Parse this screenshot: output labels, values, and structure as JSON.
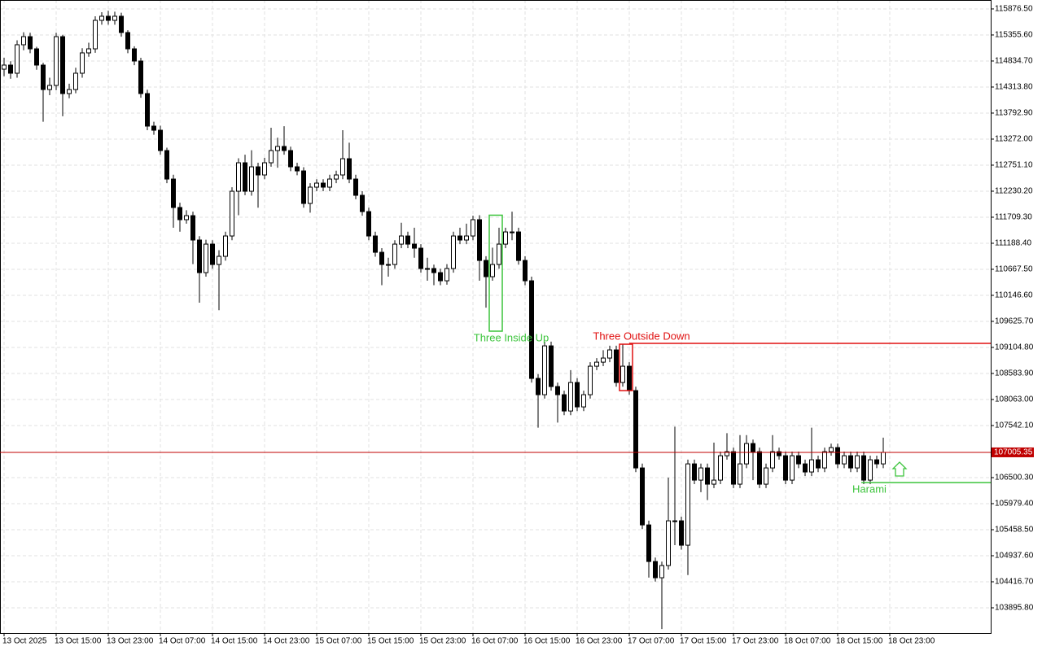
{
  "chart_data": {
    "type": "candlestick",
    "up_color": "#ffffff",
    "down_color": "#000000",
    "grid": true,
    "ylim": [
      103391,
      116055
    ],
    "yticks": [
      {
        "value": 115876.5,
        "label": "115876.50"
      },
      {
        "value": 115355.6,
        "label": "115355.60"
      },
      {
        "value": 114834.7,
        "label": "114834.70"
      },
      {
        "value": 114313.8,
        "label": "114313.80"
      },
      {
        "value": 113792.9,
        "label": "113792.90"
      },
      {
        "value": 113272.0,
        "label": "113272.00"
      },
      {
        "value": 112751.1,
        "label": "112751.10"
      },
      {
        "value": 112230.2,
        "label": "112230.20"
      },
      {
        "value": 111709.3,
        "label": "111709.30"
      },
      {
        "value": 111188.4,
        "label": "111188.40"
      },
      {
        "value": 110667.5,
        "label": "110667.50"
      },
      {
        "value": 110146.6,
        "label": "110146.60"
      },
      {
        "value": 109625.7,
        "label": "109625.70"
      },
      {
        "value": 109104.8,
        "label": "109104.80"
      },
      {
        "value": 108583.9,
        "label": "108583.90"
      },
      {
        "value": 108063.0,
        "label": "108063.00"
      },
      {
        "value": 107542.1,
        "label": "107542.10"
      },
      {
        "value": 106500.3,
        "label": "106500.30"
      },
      {
        "value": 105979.4,
        "label": "105979.40"
      },
      {
        "value": 105458.5,
        "label": "105458.50"
      },
      {
        "value": 104937.6,
        "label": "104937.60"
      },
      {
        "value": 104416.7,
        "label": "104416.70"
      },
      {
        "value": 103895.8,
        "label": "103895.80"
      }
    ],
    "xticks": [
      {
        "value": 0,
        "label": "13 Oct 2025"
      },
      {
        "value": 8,
        "label": "13 Oct 15:00"
      },
      {
        "value": 16,
        "label": "13 Oct 23:00"
      },
      {
        "value": 24,
        "label": "14 Oct 07:00"
      },
      {
        "value": 32,
        "label": "14 Oct 15:00"
      },
      {
        "value": 40,
        "label": "14 Oct 23:00"
      },
      {
        "value": 48,
        "label": "15 Oct 07:00"
      },
      {
        "value": 56,
        "label": "15 Oct 15:00"
      },
      {
        "value": 64,
        "label": "15 Oct 23:00"
      },
      {
        "value": 72,
        "label": "16 Oct 07:00"
      },
      {
        "value": 80,
        "label": "16 Oct 15:00"
      },
      {
        "value": 88,
        "label": "16 Oct 23:00"
      },
      {
        "value": 96,
        "label": "17 Oct 07:00"
      },
      {
        "value": 104,
        "label": "17 Oct 15:00"
      },
      {
        "value": 112,
        "label": "17 Oct 23:00"
      },
      {
        "value": 120,
        "label": "18 Oct 07:00"
      },
      {
        "value": 128,
        "label": "18 Oct 15:00"
      },
      {
        "value": 136,
        "label": "18 Oct 23:00"
      }
    ],
    "last_price": 107005.35,
    "last_price_color": "#c00000",
    "patterns": [
      {
        "label": "Three Inside Up",
        "color": "#3cc43c",
        "from": 75,
        "to": 76,
        "high": 111750,
        "low": 109430
      },
      {
        "label": "Three Outside Down",
        "color": "#e01010",
        "from": 95,
        "to": 96,
        "high": 109169,
        "low": 108241,
        "level": 109185
      },
      {
        "label": "Harami",
        "color": "#3cc43c",
        "from": 132,
        "level": 106401
      }
    ],
    "candles": [
      [
        114671,
        114900,
        114530,
        114753
      ],
      [
        114753,
        114830,
        114480,
        114590
      ],
      [
        114590,
        115250,
        114500,
        115160
      ],
      [
        115160,
        115410,
        115050,
        115322
      ],
      [
        115322,
        115400,
        114990,
        115078
      ],
      [
        115078,
        115120,
        114660,
        114753
      ],
      [
        114753,
        114800,
        113620,
        114264
      ],
      [
        114264,
        114500,
        114150,
        114346
      ],
      [
        114346,
        115400,
        114250,
        115322
      ],
      [
        115322,
        115360,
        113730,
        114183
      ],
      [
        114183,
        114380,
        114090,
        114264
      ],
      [
        114264,
        114700,
        114190,
        114590
      ],
      [
        114590,
        115090,
        114500,
        114997
      ],
      [
        114997,
        115200,
        114920,
        115078
      ],
      [
        115078,
        115730,
        115000,
        115648
      ],
      [
        115648,
        115810,
        115560,
        115730
      ],
      [
        115730,
        115840,
        115560,
        115648
      ],
      [
        115648,
        115820,
        115560,
        115730
      ],
      [
        115730,
        115800,
        115320,
        115404
      ],
      [
        115404,
        115450,
        114990,
        115078
      ],
      [
        115078,
        115130,
        114750,
        114834
      ],
      [
        114834,
        114900,
        114100,
        114183
      ],
      [
        114183,
        114260,
        113450,
        113532
      ],
      [
        113532,
        113620,
        113360,
        113450
      ],
      [
        113450,
        113540,
        112960,
        113043
      ],
      [
        113043,
        113100,
        112390,
        112473
      ],
      [
        112473,
        112560,
        111500,
        111904
      ],
      [
        111904,
        112000,
        111420,
        111660
      ],
      [
        111660,
        111850,
        111580,
        111741
      ],
      [
        111741,
        111820,
        110770,
        111253
      ],
      [
        111253,
        111330,
        110000,
        110601
      ],
      [
        110601,
        111260,
        110520,
        111171
      ],
      [
        111171,
        111250,
        110680,
        110764
      ],
      [
        110764,
        111050,
        109850,
        110927
      ],
      [
        110927,
        111420,
        110840,
        111334
      ],
      [
        111334,
        112310,
        111250,
        112229
      ],
      [
        112229,
        112890,
        111750,
        112799
      ],
      [
        112799,
        112960,
        112150,
        112229
      ],
      [
        112229,
        113050,
        112140,
        112718
      ],
      [
        112718,
        112800,
        111900,
        112555
      ],
      [
        112555,
        112900,
        112470,
        112799
      ],
      [
        112799,
        113500,
        112720,
        113043
      ],
      [
        113043,
        113300,
        112700,
        113125
      ],
      [
        113125,
        113530,
        112960,
        113043
      ],
      [
        113043,
        113120,
        112630,
        112718
      ],
      [
        112718,
        112800,
        112550,
        112636
      ],
      [
        112636,
        112710,
        111900,
        111985
      ],
      [
        111985,
        112390,
        111800,
        112311
      ],
      [
        112311,
        112470,
        112230,
        112392
      ],
      [
        112392,
        112470,
        112230,
        112311
      ],
      [
        112311,
        112560,
        112230,
        112473
      ],
      [
        112473,
        112640,
        112390,
        112555
      ],
      [
        112555,
        113450,
        112470,
        112880
      ],
      [
        112880,
        113200,
        112390,
        112473
      ],
      [
        112473,
        112560,
        112070,
        112148
      ],
      [
        112148,
        112230,
        111740,
        111822
      ],
      [
        111822,
        111900,
        111250,
        111334
      ],
      [
        111334,
        111420,
        110920,
        111008
      ],
      [
        111008,
        111090,
        110350,
        110764
      ],
      [
        110764,
        110900,
        110520,
        110764
      ],
      [
        110764,
        111250,
        110680,
        111171
      ],
      [
        111171,
        111600,
        111090,
        111334
      ],
      [
        111334,
        111420,
        111090,
        111171
      ],
      [
        111171,
        111500,
        110900,
        111090
      ],
      [
        111090,
        111170,
        110600,
        110683
      ],
      [
        110683,
        110900,
        110440,
        110683
      ],
      [
        110683,
        110760,
        110350,
        110601
      ],
      [
        110601,
        110680,
        110350,
        110438
      ],
      [
        110438,
        110770,
        110360,
        110683
      ],
      [
        110683,
        111420,
        110600,
        111334
      ],
      [
        111334,
        111500,
        111170,
        111253
      ],
      [
        111253,
        111580,
        111170,
        111334
      ],
      [
        111334,
        111740,
        111250,
        111660
      ],
      [
        111660,
        111750,
        110440,
        110845
      ],
      [
        110845,
        110930,
        109900,
        110520
      ],
      [
        110520,
        111100,
        110440,
        110764
      ],
      [
        110764,
        111500,
        110680,
        111171
      ],
      [
        111171,
        111500,
        111090,
        111415
      ],
      [
        111415,
        111820,
        111250,
        111415
      ],
      [
        111415,
        111500,
        110760,
        110845
      ],
      [
        110845,
        110930,
        110350,
        110438
      ],
      [
        110438,
        110520,
        108400,
        108485
      ],
      [
        108485,
        108570,
        107500,
        108159
      ],
      [
        108159,
        109220,
        108080,
        109136
      ],
      [
        109136,
        109220,
        108240,
        108322
      ],
      [
        108322,
        108400,
        107600,
        108159
      ],
      [
        108159,
        108240,
        107750,
        107833
      ],
      [
        107833,
        108650,
        107750,
        108403
      ],
      [
        108403,
        108490,
        107830,
        107915
      ],
      [
        107915,
        108240,
        107830,
        108159
      ],
      [
        108159,
        108810,
        108080,
        108729
      ],
      [
        108729,
        108890,
        108650,
        108810
      ],
      [
        108810,
        109050,
        108730,
        108892
      ],
      [
        108892,
        109140,
        108810,
        109055
      ],
      [
        109055,
        109140,
        108320,
        108403
      ],
      [
        108403,
        109170,
        108320,
        108729
      ],
      [
        108729,
        108810,
        108160,
        108241
      ],
      [
        108241,
        108320,
        106610,
        106694
      ],
      [
        106694,
        106780,
        105470,
        105554
      ],
      [
        105554,
        105640,
        104500,
        104822
      ],
      [
        104822,
        104900,
        104420,
        104497
      ],
      [
        104497,
        104820,
        103470,
        104741
      ],
      [
        104741,
        106500,
        104660,
        105636
      ],
      [
        105636,
        107520,
        105150,
        105636
      ],
      [
        105636,
        105720,
        105060,
        105148
      ],
      [
        105148,
        106860,
        104550,
        106775
      ],
      [
        106775,
        106860,
        106370,
        106450
      ],
      [
        106450,
        106780,
        106210,
        106694
      ],
      [
        106694,
        106780,
        106050,
        106369
      ],
      [
        106369,
        107200,
        106290,
        106450
      ],
      [
        106450,
        107020,
        106370,
        106938
      ],
      [
        106938,
        107390,
        106860,
        107019
      ],
      [
        107019,
        107100,
        106290,
        106369
      ],
      [
        106369,
        107350,
        106290,
        106775
      ],
      [
        106775,
        107350,
        106690,
        107182
      ],
      [
        107182,
        107260,
        106450,
        107019
      ],
      [
        107019,
        107100,
        106290,
        106369
      ],
      [
        106369,
        106780,
        106290,
        106694
      ],
      [
        106694,
        107350,
        106610,
        107019
      ],
      [
        107019,
        107100,
        106860,
        106938
      ],
      [
        106938,
        107020,
        106370,
        106450
      ],
      [
        106450,
        107020,
        106370,
        106938
      ],
      [
        106938,
        107020,
        106690,
        106775
      ],
      [
        106775,
        106860,
        106530,
        106613
      ],
      [
        106613,
        107500,
        106530,
        106857
      ],
      [
        106857,
        106940,
        106610,
        106694
      ],
      [
        106694,
        107100,
        106610,
        107019
      ],
      [
        107019,
        107180,
        106940,
        107101
      ],
      [
        107101,
        107180,
        106690,
        106775
      ],
      [
        106775,
        107020,
        106690,
        106938
      ],
      [
        106938,
        107020,
        106610,
        106694
      ],
      [
        106694,
        107020,
        106610,
        106938
      ],
      [
        106938,
        107020,
        106370,
        106450
      ],
      [
        106450,
        106940,
        106370,
        106857
      ],
      [
        106857,
        106940,
        106690,
        106775
      ],
      [
        106775,
        107300,
        106690,
        107005.35
      ]
    ]
  }
}
